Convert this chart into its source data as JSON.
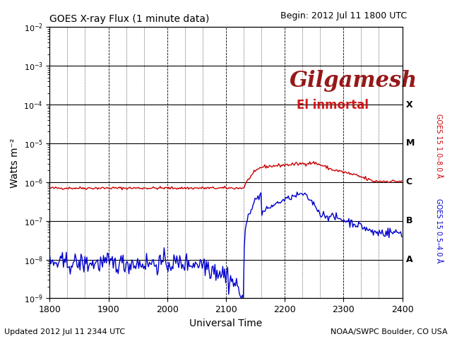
{
  "title": "GOES X-ray Flux (1 minute data)",
  "begin_text": "Begin: 2012 Jul 11 1800 UTC",
  "xlabel": "Universal Time",
  "ylabel": "Watts m⁻²",
  "right_ylabel_red": "GOES 15 1.0–8.0 Å",
  "right_ylabel_blue": "GOES 15 0.5–4.0 Å",
  "footer_left": "Updated 2012 Jul 11 2344 UTC",
  "footer_right": "NOAA/SWPC Boulder, CO USA",
  "watermark_line1": "Gilgamesh",
  "watermark_line2": "El inmortal",
  "xlim": [
    1800,
    2400
  ],
  "ylim_log": [
    -9,
    -2
  ],
  "xticks": [
    1800,
    1900,
    2000,
    2100,
    2200,
    2300,
    2400
  ],
  "xgrid_minor_positions": [
    1830,
    1860,
    1930,
    1960,
    2030,
    2060,
    2130,
    2160,
    2230,
    2260,
    2330,
    2360
  ],
  "flare_class_labels": [
    "X",
    "M",
    "C",
    "B",
    "A"
  ],
  "flare_class_values": [
    0.0001,
    1e-05,
    1e-06,
    1e-07,
    1e-08
  ],
  "bg_color": "#ffffff",
  "plot_bg_color": "#ffffff",
  "red_color": "#cc0000",
  "blue_color": "#0000cc",
  "watermark_color": "#8b0000",
  "watermark2_color": "#cc0000"
}
